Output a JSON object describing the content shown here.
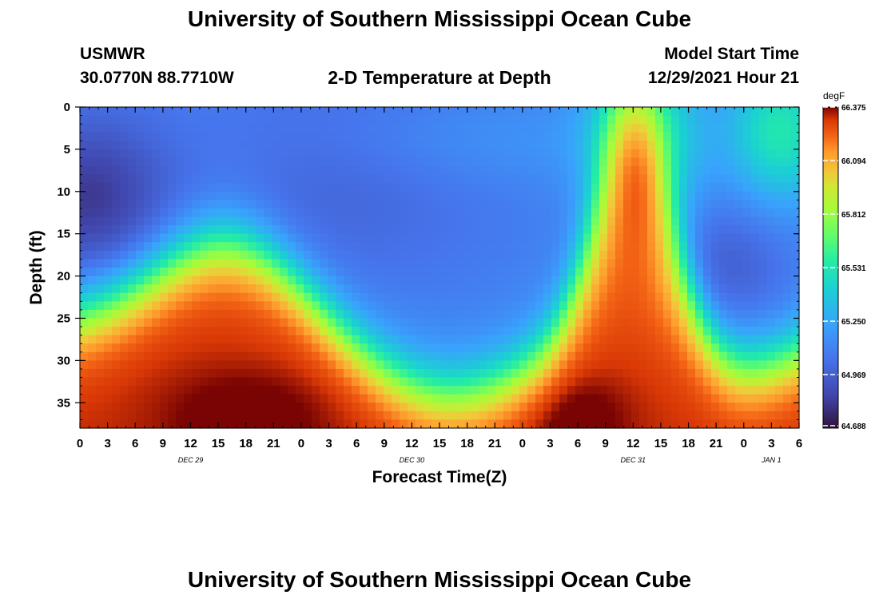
{
  "page": {
    "title": "University of Southern Mississippi Ocean Cube",
    "footer_title": "University of Southern Mississippi Ocean Cube"
  },
  "header": {
    "station": "USMWR",
    "coords": "30.0770N  88.7710W",
    "subtitle": "2-D Temperature at Depth",
    "model_label": "Model Start Time",
    "model_time": "12/29/2021 Hour 21"
  },
  "chart_data": {
    "type": "heatmap",
    "title": "2-D Temperature at Depth",
    "xlabel": "Forecast Time(Z)",
    "ylabel": "Depth (ft)",
    "x_ticks": [
      "0",
      "3",
      "6",
      "9",
      "12",
      "15",
      "18",
      "21",
      "0",
      "3",
      "6",
      "9",
      "12",
      "15",
      "18",
      "21",
      "0",
      "3",
      "6",
      "9",
      "12",
      "15",
      "18",
      "21",
      "0",
      "3",
      "6"
    ],
    "day_labels": [
      "DEC 29",
      "DEC 30",
      "DEC 31",
      "JAN 1"
    ],
    "x_hours": [
      0,
      78
    ],
    "y_ticks": [
      "0",
      "5",
      "10",
      "15",
      "20",
      "25",
      "30",
      "35"
    ],
    "ylim": [
      0,
      38
    ],
    "y_inverted": true,
    "colorbar": {
      "unit": "degF",
      "ticks": [
        "66.375",
        "66.094",
        "65.812",
        "65.531",
        "65.250",
        "64.969",
        "64.688"
      ],
      "range": [
        64.688,
        66.375
      ]
    }
  }
}
